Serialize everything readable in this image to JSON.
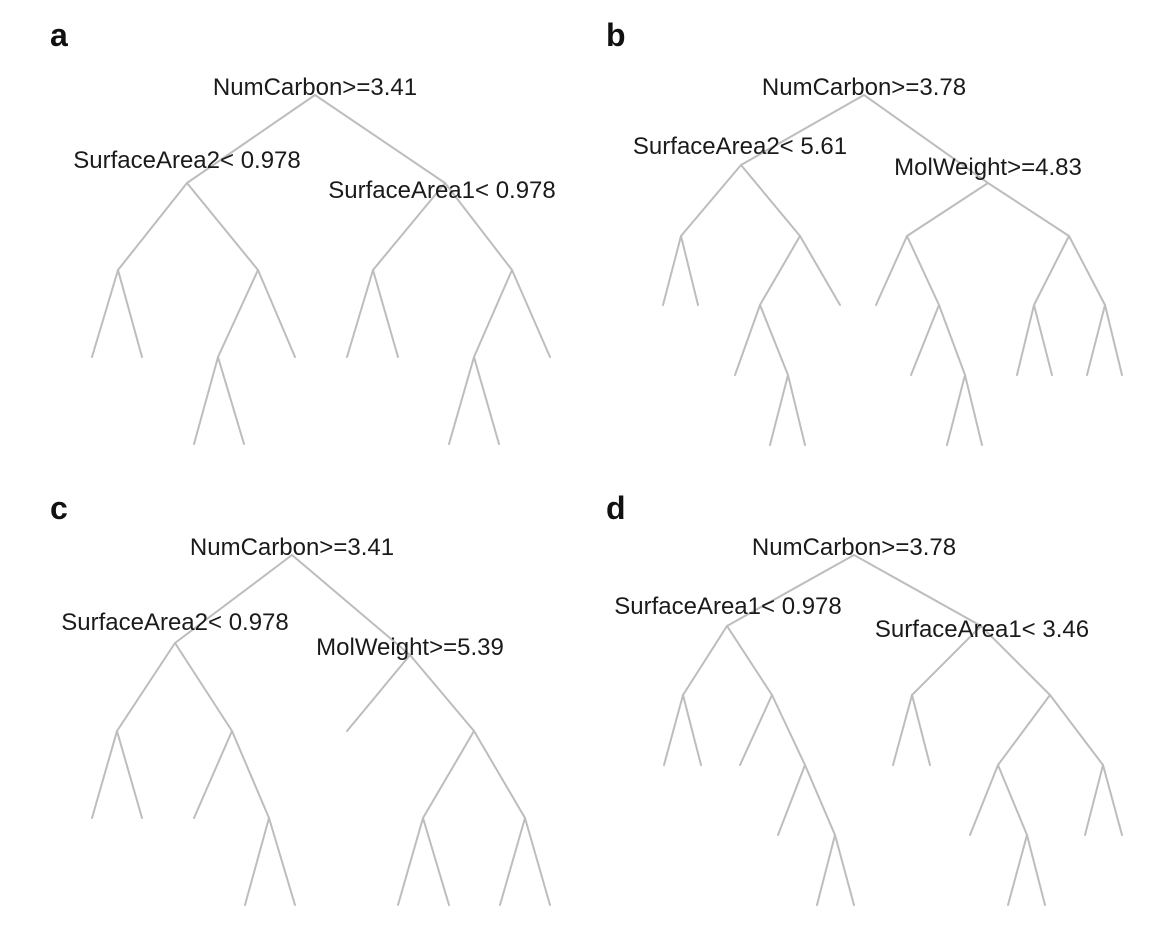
{
  "panels": [
    {
      "letter": "a",
      "split_labels": [
        "NumCarbon>=3.41",
        "SurfaceArea2< 0.978",
        "SurfaceArea1< 0.978"
      ]
    },
    {
      "letter": "b",
      "split_labels": [
        "NumCarbon>=3.78",
        "SurfaceArea2< 5.61",
        "MolWeight>=4.83"
      ]
    },
    {
      "letter": "c",
      "split_labels": [
        "NumCarbon>=3.41",
        "SurfaceArea2< 0.978",
        "MolWeight>=5.39"
      ]
    },
    {
      "letter": "d",
      "split_labels": [
        "NumCarbon>=3.78",
        "SurfaceArea1< 0.978",
        "SurfaceArea1< 3.46"
      ]
    }
  ],
  "colors": {
    "edge": "#bdbdbd",
    "text": "#1a1a1a"
  }
}
